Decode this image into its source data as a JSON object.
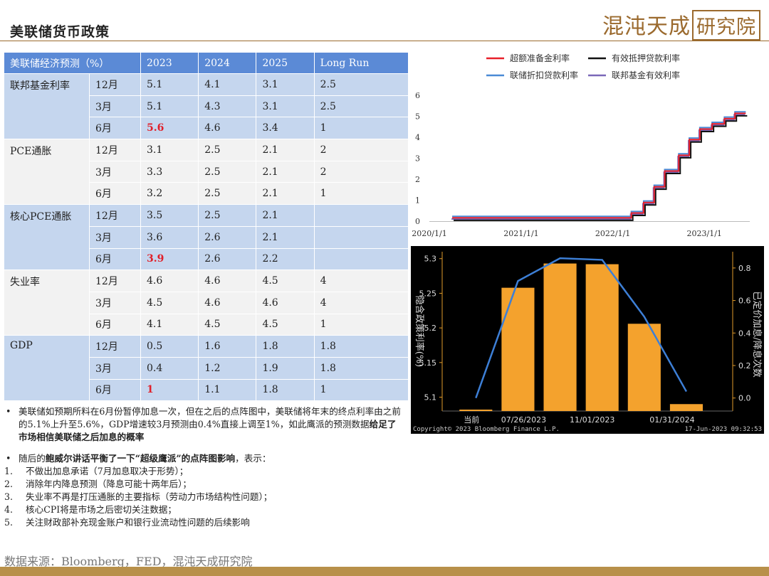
{
  "header": {
    "title": "美联储货币政策",
    "brand_text": "混沌天成",
    "brand_box": "研究院"
  },
  "table": {
    "headers": [
      "美联储经济预测（%）",
      "2023",
      "2024",
      "2025",
      "Long Run"
    ],
    "groups": [
      {
        "name": "联邦基金利率",
        "rows": [
          {
            "period": "12月",
            "values": [
              "5.1",
              "4.1",
              "3.1",
              "2.5"
            ]
          },
          {
            "period": "3月",
            "values": [
              "5.1",
              "4.3",
              "3.1",
              "2.5"
            ]
          },
          {
            "period": "6月",
            "values": [
              "5.6",
              "4.6",
              "3.4",
              "1"
            ],
            "highlight": 0
          }
        ]
      },
      {
        "name": "PCE通胀",
        "rows": [
          {
            "period": "12月",
            "values": [
              "3.1",
              "2.5",
              "2.1",
              "2"
            ]
          },
          {
            "period": "3月",
            "values": [
              "3.3",
              "2.5",
              "2.1",
              "2"
            ]
          },
          {
            "period": "6月",
            "values": [
              "3.2",
              "2.5",
              "2.1",
              "1"
            ]
          }
        ]
      },
      {
        "name": "核心PCE通胀",
        "rows": [
          {
            "period": "12月",
            "values": [
              "3.5",
              "2.5",
              "2.1",
              ""
            ]
          },
          {
            "period": "3月",
            "values": [
              "3.6",
              "2.6",
              "2.1",
              ""
            ]
          },
          {
            "period": "6月",
            "values": [
              "3.9",
              "2.6",
              "2.2",
              ""
            ],
            "highlight": 0
          }
        ]
      },
      {
        "name": "失业率",
        "rows": [
          {
            "period": "12月",
            "values": [
              "4.6",
              "4.6",
              "4.5",
              "4"
            ]
          },
          {
            "period": "3月",
            "values": [
              "4.5",
              "4.6",
              "4.6",
              "4"
            ]
          },
          {
            "period": "6月",
            "values": [
              "4.1",
              "4.5",
              "4.5",
              "1"
            ]
          }
        ]
      },
      {
        "name": "GDP",
        "rows": [
          {
            "period": "12月",
            "values": [
              "0.5",
              "1.6",
              "1.8",
              "1.8"
            ]
          },
          {
            "period": "3月",
            "values": [
              "0.4",
              "1.2",
              "1.9",
              "1.8"
            ]
          },
          {
            "period": "6月",
            "values": [
              "1",
              "1.1",
              "1.8",
              "1"
            ],
            "highlight": 0
          }
        ]
      }
    ]
  },
  "notes": {
    "bullet1_a": "美联储如预期所料在6月份暂停加息一次，但在之后的点阵图中，美联储将年末的终点利率由之前的5.1%上升至5.6%，GDP增速较3月预测由0.4%直接上调至1%，如此鹰派的预测数据",
    "bullet1_b": "给足了市场相信美联储之后加息的概率",
    "bullet2_a": "随后的",
    "bullet2_b": "鲍威尔讲话平衡了一下“超级鹰派”的点阵图影响",
    "bullet2_c": "，表示：",
    "items": [
      {
        "n": "1.",
        "text": "不做出加息承诺（7月加息取决于形势）；"
      },
      {
        "n": "2.",
        "text": "消除年内降息预测（降息可能十两年后）；"
      },
      {
        "n": "3.",
        "text": "失业率不再是打压通胀的主要指标（劳动力市场结构性问题）；"
      },
      {
        "n": "4.",
        "text": "核心CPI将是市场之后密切关注数据；"
      },
      {
        "n": "5.",
        "text": "关注财政部补充现金账户和银行业流动性问题的后续影响"
      }
    ]
  },
  "footer": {
    "source": "数据来源：Bloomberg，FED，混沌天成研究院"
  },
  "chart_data": [
    {
      "type": "line",
      "series": [
        {
          "name": "超额准备金利率",
          "color": "#e8202a"
        },
        {
          "name": "有效抵押贷款利率",
          "color": "#111111"
        },
        {
          "name": "联储折扣贷款利率",
          "color": "#4a8ad6"
        },
        {
          "name": "联邦基金有效利率",
          "color": "#7a68b8"
        }
      ],
      "x_ticks": [
        "2020/1/1",
        "2021/1/1",
        "2022/1/1",
        "2023/1/1"
      ],
      "ylim": [
        0,
        6
      ],
      "y_ticks": [
        "0",
        "1",
        "2",
        "3",
        "4",
        "5",
        "6"
      ],
      "step_path": [
        [
          "2020-04-01",
          0.1
        ],
        [
          "2022-03-16",
          0.33
        ],
        [
          "2022-05-04",
          0.83
        ],
        [
          "2022-06-15",
          1.58
        ],
        [
          "2022-07-27",
          2.33
        ],
        [
          "2022-09-21",
          3.08
        ],
        [
          "2022-11-02",
          3.83
        ],
        [
          "2022-12-14",
          4.33
        ],
        [
          "2023-02-01",
          4.58
        ],
        [
          "2023-03-22",
          4.83
        ],
        [
          "2023-05-03",
          5.08
        ],
        [
          "2023-06-15",
          5.08
        ]
      ]
    },
    {
      "type": "bar",
      "categories": [
        "当前",
        "07/26/2023",
        "11/01/2023",
        "01/31/2024"
      ],
      "bar_values": [
        5.08,
        5.258,
        5.293,
        5.292,
        5.206,
        5.09
      ],
      "line_values": [
        0.0,
        0.72,
        0.86,
        0.85,
        0.5,
        0.04
      ],
      "ylabel_left": "隐含政策利率(%)",
      "ylabel_right": "已定价加息/降息次数",
      "ylim_left": [
        5.08,
        5.31
      ],
      "y_ticks_left": [
        "5.1",
        "5.15",
        "5.2",
        "5.25",
        "5.3"
      ],
      "ylim_right": [
        -0.08,
        0.9
      ],
      "y_ticks_right": [
        "0.0",
        "0.2",
        "0.4",
        "0.6",
        "0.8"
      ],
      "copyright": "Copyright© 2023 Bloomberg Finance L.P.",
      "timestamp": "17-Jun-2023 09:32:53",
      "bar_color": "#f4a22d",
      "line_color": "#3d7fd6"
    }
  ]
}
